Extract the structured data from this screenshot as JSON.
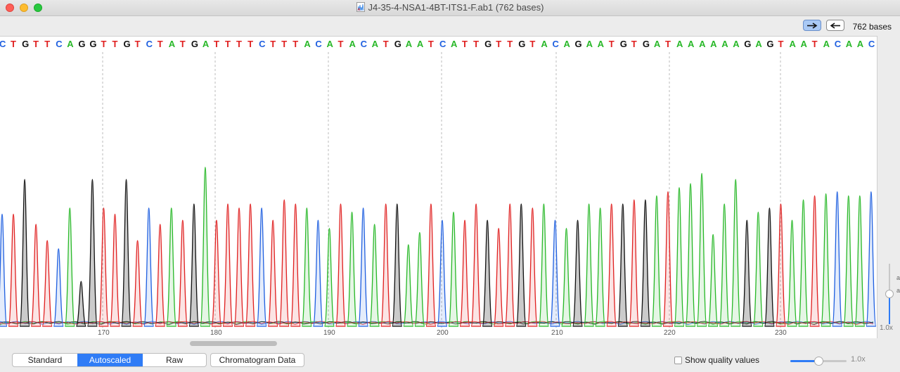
{
  "window": {
    "title": "J4-35-4-NSA1-4BT-ITS1-F.ab1  (762 bases)"
  },
  "toolbar": {
    "forward_icon": "arrow-right-icon",
    "reverse_icon": "arrow-left-icon",
    "bases_label": "762 bases"
  },
  "colors": {
    "A": "#28b828",
    "C": "#2060e0",
    "G": "#111111",
    "T": "#e02020"
  },
  "sequence": "CTGTTCAGGTTGTCTATGATTTTCTTTACATACATGAATCATTGTTGTACAGAATGTGATAAAAAAGAGTAATACAAC",
  "axis_ticks": [
    "170",
    "180",
    "190",
    "200",
    "210",
    "220",
    "230"
  ],
  "right_panel": {
    "zoom_label": "1.0x",
    "fragment_1": "a",
    "fragment_2": "a"
  },
  "bottom": {
    "mode_standard": "Standard",
    "mode_autoscaled": "Autoscaled",
    "mode_raw": "Raw",
    "chromatogram_button": "Chromatogram Data",
    "quality_label": "Show quality values",
    "zoom_label": "1.0x"
  }
}
